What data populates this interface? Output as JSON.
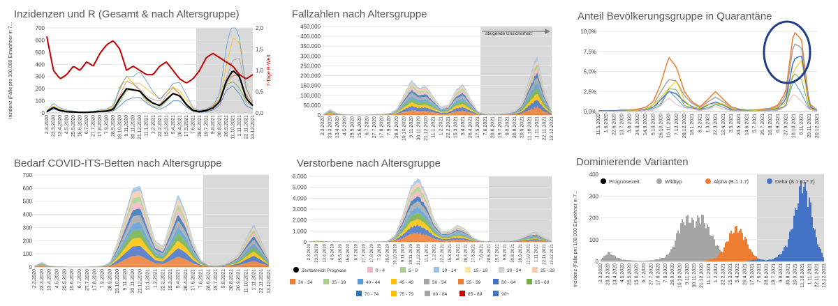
{
  "dates_a": [
    "2.3.2020",
    "23.3.2020",
    "13.4.2020",
    "4.5.2020",
    "25.5.2020",
    "15.6.2020",
    "6.7.2020",
    "27.7.2020",
    "17.8.2020",
    "7.9.2020",
    "28.9.2020",
    "19.10.2020",
    "9.11.2020",
    "30.11.2020",
    "21.12.2020",
    "11.1.2021",
    "1.2.2021",
    "22.2.2021",
    "15.3.2021",
    "5.4.2021",
    "26.4.2021",
    "17.5.2021",
    "7.6.2021",
    "28.6.2021",
    "19.7.2021",
    "9.8.2021",
    "30.8.2021",
    "20.9.2021",
    "11.10.2021",
    "1.11.2021",
    "22.11.2021",
    "13.12.2021"
  ],
  "dates_b": [
    "11.5.2020",
    "1.6.2020",
    "22.6.2020",
    "13.7.2020",
    "3.8.2020",
    "24.8.2020",
    "14.9.2020",
    "5.10.2020",
    "26.10.2020",
    "16.11.2020",
    "7.12.2020",
    "28.12.2020",
    "18.1.2021",
    "8.2.2021",
    "1.3.2021",
    "22.3.2021",
    "12.4.2021",
    "3.5.2021",
    "24.5.2021",
    "14.6.2021",
    "5.7.2021",
    "26.7.2021",
    "16.8.2021",
    "6.9.2021",
    "27.9.2021",
    "18.10.2021",
    "8.11.2021",
    "29.11.2021",
    "20.12.2021"
  ],
  "dates_c": [
    "2.3.2020",
    "23.3.2020",
    "13.4.2020",
    "4.5.2020",
    "25.5.2020",
    "15.6.2020",
    "6.7.2020",
    "27.7.2020",
    "17.8.2020",
    "7.9.2020",
    "28.9.2020",
    "19.10.2020",
    "9.11.2020",
    "30.11.2020",
    "21.12.2020",
    "11.1.2021",
    "1.2.2021",
    "22.2.2021",
    "15.3.2021",
    "5.4.2021",
    "26.4.2021",
    "17.5.2021",
    "7.6.2021",
    "28.6.2021",
    "19.7.2021",
    "9.8.2021",
    "30.8.2021",
    "20.9.2021",
    "11.10.2021",
    "1.11.2021",
    "22.11.2021",
    "13.12.2021"
  ],
  "colors": {
    "black": "#000000",
    "red": "#c00000",
    "shade": "#d9d9d9",
    "grid": "#e6e6e6",
    "axis": "#bfbfbf",
    "circle": "#1f3b8a",
    "orange": "#ed7d31",
    "grey": "#a5a5a5",
    "blue": "#4472c4",
    "yellow": "#ffc000",
    "green": "#70ad47",
    "lightblue": "#5b9bd5",
    "pink": "#f4b6c2",
    "lightgreen": "#a9d18e",
    "lightblue2": "#9dc3e6",
    "lightyellow": "#ffe699",
    "lightgrey": "#d0cece",
    "peach": "#f8cbad",
    "teal": "#2e75b6"
  },
  "chart_data": [
    {
      "type": "line",
      "title": "Inzidenzen und R (Gesamt & nach Altersgruppe)",
      "ylabel": "Inzidenz (Fälle pro 100.000 Einwohner in 7...",
      "ylabel2": "7-Tage R-Wert",
      "yticks": [
        "0",
        "100",
        "200",
        "300",
        "400",
        "500",
        "600",
        "700"
      ],
      "yticks2": [
        "0,0",
        "0,5",
        "1,0",
        "1,5",
        "2,0"
      ],
      "ylim": [
        0,
        700
      ],
      "ylim2": [
        0,
        2
      ],
      "series": [
        {
          "values": [
            10,
            45,
            20,
            10,
            8,
            5,
            5,
            8,
            12,
            15,
            30,
            120,
            200,
            190,
            180,
            120,
            80,
            60,
            110,
            160,
            140,
            70,
            20,
            10,
            20,
            40,
            90,
            260,
            350,
            300,
            120,
            60
          ]
        },
        {
          "values": [
            1.8,
            1.0,
            0.8,
            0.9,
            1.1,
            1.0,
            1.2,
            1.1,
            1.4,
            1.6,
            1.7,
            1.5,
            1.0,
            1.1,
            1.0,
            0.9,
            0.9,
            1.1,
            1.2,
            1.0,
            0.8,
            0.7,
            0.8,
            1.0,
            1.3,
            1.4,
            1.3,
            1.2,
            1.1,
            0.9,
            0.8,
            0.9
          ]
        }
      ]
    },
    {
      "type": "area",
      "title": "Fallzahlen nach Altersgruppe",
      "yticks": [
        "0",
        "50.000",
        "100.000",
        "150.000",
        "200.000",
        "250.000",
        "300.000",
        "350.000",
        "400.000",
        "450.000"
      ],
      "ylim": [
        0,
        450000
      ],
      "annotation": "steigende Unsicherheit",
      "series": [
        {
          "values": [
            2000,
            30000,
            10000,
            3000,
            2000,
            1000,
            2000,
            4000,
            6000,
            10000,
            30000,
            100000,
            170000,
            130000,
            140000,
            90000,
            40000,
            50000,
            120000,
            150000,
            80000,
            20000,
            5000,
            3000,
            5000,
            10000,
            20000,
            60000,
            180000,
            290000,
            120000,
            20000
          ]
        }
      ]
    },
    {
      "type": "line",
      "title": "Anteil Bevölkerungsgruppe in Quarantäne",
      "yticks": [
        "0,0%",
        "2,5%",
        "5,0%",
        "7,5%",
        "10,0%"
      ],
      "ylim": [
        0,
        10
      ],
      "series": [
        {
          "values": [
            0.1,
            0.1,
            0.1,
            0.2,
            0.2,
            0.3,
            0.5,
            1.2,
            3.5,
            6.8,
            5.5,
            2.5,
            1.2,
            0.6,
            1.5,
            2.5,
            1.5,
            0.6,
            0.3,
            0.2,
            0.2,
            0.3,
            0.4,
            0.8,
            2.5,
            10.0,
            9.0,
            1.0,
            0.2
          ]
        },
        {
          "values": [
            0.1,
            0.1,
            0.1,
            0.1,
            0.1,
            0.2,
            0.3,
            0.8,
            2.5,
            4.0,
            3.8,
            2.0,
            1.0,
            0.5,
            1.2,
            1.8,
            1.2,
            0.5,
            0.3,
            0.2,
            0.2,
            0.2,
            0.3,
            0.6,
            2.0,
            8.5,
            8.0,
            0.8,
            0.2
          ]
        },
        {
          "values": [
            0.1,
            0.1,
            0.1,
            0.1,
            0.1,
            0.1,
            0.2,
            0.5,
            1.5,
            2.5,
            2.2,
            1.2,
            0.6,
            0.3,
            0.8,
            1.2,
            0.8,
            0.3,
            0.2,
            0.1,
            0.1,
            0.1,
            0.2,
            0.4,
            1.5,
            6.5,
            7.0,
            0.6,
            0.1
          ]
        }
      ]
    },
    {
      "type": "area",
      "title": "Bedarf COVID-ITS-Betten nach Altersgruppe",
      "yticks": [
        "0",
        "100",
        "200",
        "300",
        "400",
        "500",
        "600",
        "700"
      ],
      "ylim": [
        0,
        700
      ],
      "series": [
        {
          "values": [
            10,
            40,
            10,
            5,
            3,
            2,
            2,
            3,
            5,
            10,
            40,
            200,
            400,
            600,
            620,
            400,
            200,
            160,
            350,
            560,
            420,
            200,
            60,
            15,
            10,
            20,
            50,
            100,
            220,
            330,
            200,
            60
          ]
        }
      ]
    },
    {
      "type": "area",
      "title": "Verstorbene nach Altersgruppe",
      "yticks": [
        "0",
        "1.000",
        "2.000",
        "3.000",
        "4.000",
        "5.000",
        "6.000"
      ],
      "ylim": [
        0,
        6000
      ],
      "legend": [
        "Zentbereich Prognose",
        "0 - 4",
        "5 - 9",
        "10 - 14",
        "15 - 19",
        "20 - 24",
        "25 - 29",
        "30 - 34",
        "35 - 39",
        "40 - 44",
        "45 - 49",
        "50 - 54",
        "55 - 59",
        "60 - 64",
        "65 - 69",
        "70 - 74",
        "75 - 79",
        "80 - 84",
        "85 - 89",
        "90+"
      ],
      "series": [
        {
          "values": [
            20,
            100,
            80,
            20,
            10,
            5,
            5,
            5,
            10,
            20,
            80,
            600,
            2400,
            4800,
            5600,
            4200,
            2000,
            900,
            1000,
            1500,
            1100,
            400,
            100,
            40,
            30,
            50,
            100,
            300,
            700,
            900,
            400,
            80
          ]
        }
      ]
    },
    {
      "type": "area",
      "title": "Dominierende Varianten",
      "ylabel": "Inzidenz (Fälle pro 100.000 Einwohner in 7...",
      "yticks": [
        "0",
        "100",
        "200",
        "300",
        "400"
      ],
      "ylim": [
        0,
        400
      ],
      "legend": [
        "Prognosezeit",
        "Wildtyp",
        "Alpha (B.1.1.7)",
        "Delta (B.1.617.2)"
      ],
      "series": [
        {
          "name": "Wildtyp",
          "values": [
            10,
            40,
            20,
            8,
            5,
            3,
            3,
            5,
            10,
            20,
            60,
            160,
            190,
            170,
            200,
            140,
            80,
            30,
            10,
            2,
            0,
            0,
            0,
            0,
            0,
            0,
            0,
            0,
            0,
            0,
            0,
            0
          ]
        },
        {
          "name": "Alpha (B.1.1.7)",
          "values": [
            0,
            0,
            0,
            0,
            0,
            0,
            0,
            0,
            0,
            0,
            0,
            0,
            0,
            0,
            0,
            5,
            15,
            50,
            120,
            150,
            110,
            40,
            10,
            2,
            0,
            0,
            0,
            0,
            0,
            0,
            0,
            0
          ]
        },
        {
          "name": "Delta (B.1.617.2)",
          "values": [
            0,
            0,
            0,
            0,
            0,
            0,
            0,
            0,
            0,
            0,
            0,
            0,
            0,
            0,
            0,
            0,
            0,
            0,
            0,
            0,
            0,
            5,
            10,
            5,
            10,
            30,
            80,
            200,
            350,
            280,
            100,
            20
          ]
        }
      ]
    }
  ]
}
